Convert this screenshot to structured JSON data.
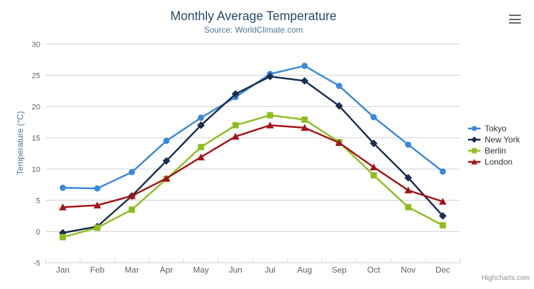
{
  "header": {
    "menu_icon": "hamburger-menu-icon"
  },
  "credits": {
    "label": "Highcharts.com"
  },
  "chart_data": {
    "type": "line",
    "title": "Monthly Average Temperature",
    "subtitle": "Source: WorldClimate.com",
    "categories": [
      "Jan",
      "Feb",
      "Mar",
      "Apr",
      "May",
      "Jun",
      "Jul",
      "Aug",
      "Sep",
      "Oct",
      "Nov",
      "Dec"
    ],
    "series": [
      {
        "name": "Tokyo",
        "color": "#3a89dc",
        "marker": "circle",
        "values": [
          7.0,
          6.9,
          9.5,
          14.5,
          18.2,
          21.5,
          25.2,
          26.5,
          23.3,
          18.3,
          13.9,
          9.6
        ]
      },
      {
        "name": "New York",
        "color": "#1a2f4d",
        "marker": "diamond",
        "values": [
          -0.2,
          0.8,
          5.7,
          11.3,
          17.0,
          22.0,
          24.8,
          24.1,
          20.1,
          14.1,
          8.6,
          2.5
        ]
      },
      {
        "name": "Berlin",
        "color": "#8ebe1f",
        "marker": "square",
        "values": [
          -0.9,
          0.6,
          3.5,
          8.4,
          13.5,
          17.0,
          18.6,
          17.9,
          14.3,
          9.0,
          3.9,
          1.0
        ]
      },
      {
        "name": "London",
        "color": "#a31418",
        "marker": "triangle",
        "values": [
          3.9,
          4.2,
          5.7,
          8.5,
          11.9,
          15.2,
          17.0,
          16.6,
          14.2,
          10.3,
          6.6,
          4.8
        ]
      }
    ],
    "xlabel": "",
    "ylabel": "Temperature (°C)",
    "ylim": [
      -5,
      30
    ],
    "ytick_interval": 5,
    "grid": true,
    "legend_position": "right"
  },
  "colors": {
    "title": "#274b6d",
    "subtitle": "#4d759e",
    "axis_line": "#c0d0e0",
    "gridline": "#cfcfcf",
    "axis_label": "#606060",
    "axis_title": "#4d759e",
    "legend_text": "#333333",
    "credits_text": "#909090",
    "menu_icon": "#666666"
  }
}
